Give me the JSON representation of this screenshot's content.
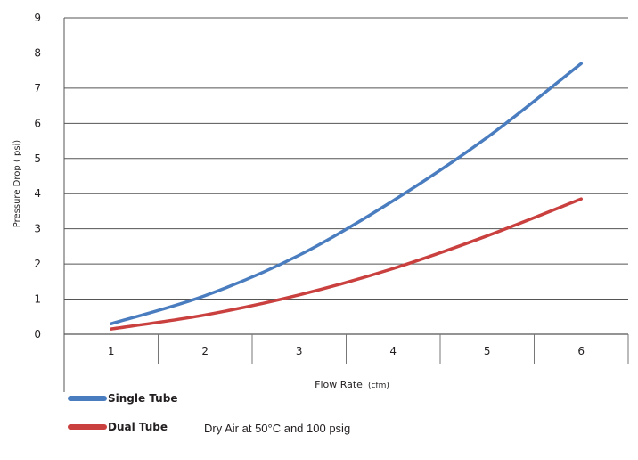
{
  "chart_data": {
    "type": "line",
    "ylabel": "Pressure Drop ( psi)",
    "xlabel": "Flow Rate",
    "xlabel_unit": "(cfm)",
    "x": [
      1,
      2,
      3,
      4,
      5,
      6
    ],
    "ylim": [
      0,
      9
    ],
    "yticks": [
      0,
      1,
      2,
      3,
      4,
      5,
      6,
      7,
      8,
      9
    ],
    "grid": "horizontal",
    "legend_position": "bottom-left",
    "series": [
      {
        "name": "Single Tube",
        "color": "#4a7dbf",
        "values": [
          0.3,
          1.1,
          2.25,
          3.8,
          5.6,
          7.7
        ]
      },
      {
        "name": "Dual Tube",
        "color": "#c9403f",
        "values": [
          0.15,
          0.55,
          1.12,
          1.87,
          2.8,
          3.85
        ]
      }
    ],
    "note": "Dry Air at 50°C and 100 psig"
  }
}
